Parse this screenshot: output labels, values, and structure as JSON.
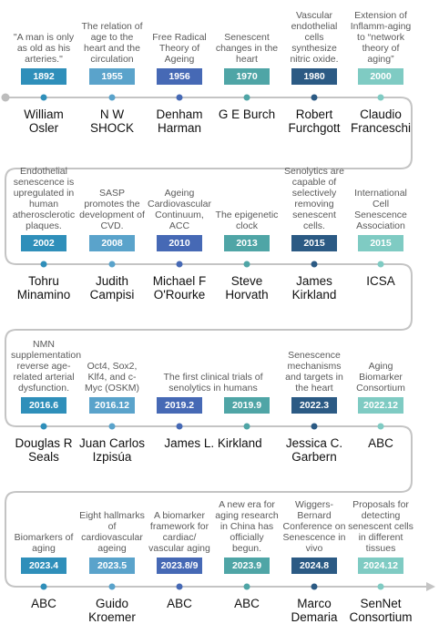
{
  "rows": [
    {
      "events": [
        {
          "description": "\"A man is only as old as his arteries.\"",
          "year": "1892",
          "name": "William Osler"
        },
        {
          "description": "The relation of age to the heart and the circulation",
          "year": "1955",
          "name": "N W SHOCK"
        },
        {
          "description": "Free Radical Theory of Ageing",
          "year": "1956",
          "name": "Denham Harman"
        },
        {
          "description": "Senescent changes in the heart",
          "year": "1970",
          "name": "G E Burch"
        },
        {
          "description": "Vascular endothelial cells synthesize nitric oxide.",
          "year": "1980",
          "name": "Robert Furchgott"
        },
        {
          "description": "Extension of Inflamm-aging to “network theory of aging”",
          "year": "2000",
          "name": "Claudio Franceschi"
        }
      ]
    },
    {
      "events": [
        {
          "description": "Endothelial senescence is upregulated in human atherosclerotic plaques.",
          "year": "2002",
          "name": "Tohru Minamino"
        },
        {
          "description": "SASP promotes the development of CVD.",
          "year": "2008",
          "name": "Judith Campisi"
        },
        {
          "description": "Ageing Cardiovascular Continuum, ACC",
          "year": "2010",
          "name": "Michael F O'Rourke"
        },
        {
          "description": "The epigenetic clock",
          "year": "2013",
          "name": "Steve Horvath"
        },
        {
          "description": "Senolytics are capable of selectively removing senescent cells.",
          "year": "2015",
          "name": "James Kirkland"
        },
        {
          "description": "International Cell Senescence Association",
          "year": "2015",
          "name": "ICSA"
        }
      ]
    },
    {
      "events": [
        {
          "description": "NMN supplementation reverse age-related arterial dysfunction.",
          "year": "2016.6",
          "name": "Douglas R Seals"
        },
        {
          "description": "Oct4, Sox2, Klf4, and c-Myc (OSKM)",
          "year": "2016.12",
          "name": "Juan Carlos Izpisúa"
        },
        {
          "year": "2019.2"
        },
        {
          "year": "2019.9"
        },
        {
          "description": "Senescence mechanisms and targets in the heart",
          "year": "2022.3",
          "name": "Jessica C. Garbern"
        },
        {
          "description": "Aging Biomarker Consortium",
          "year": "2022.12",
          "name": "ABC"
        }
      ],
      "span": {
        "description": "The first clinical trials of senolytics in humans",
        "name": "James L. Kirkland"
      }
    },
    {
      "events": [
        {
          "description": "Biomarkers of aging",
          "year": "2023.4",
          "name": "ABC"
        },
        {
          "description": "Eight hallmarks of cardiovascular ageing",
          "year": "2023.5",
          "name": "Guido Kroemer"
        },
        {
          "description": "A biomarker framework for cardiac/ vascular aging",
          "year": "2023.8/9",
          "name": "ABC"
        },
        {
          "description": "A new era for aging research in China has officially begun.",
          "year": "2023.9",
          "name": "ABC"
        },
        {
          "description": "Wiggers-Bernard Conference on Senescence in vivo",
          "year": "2024.8",
          "name": "Marco Demaria"
        },
        {
          "description": "Proposals for detecting senescent cells in different tissues",
          "year": "2024.12",
          "name": "SenNet Consortium"
        }
      ]
    }
  ]
}
